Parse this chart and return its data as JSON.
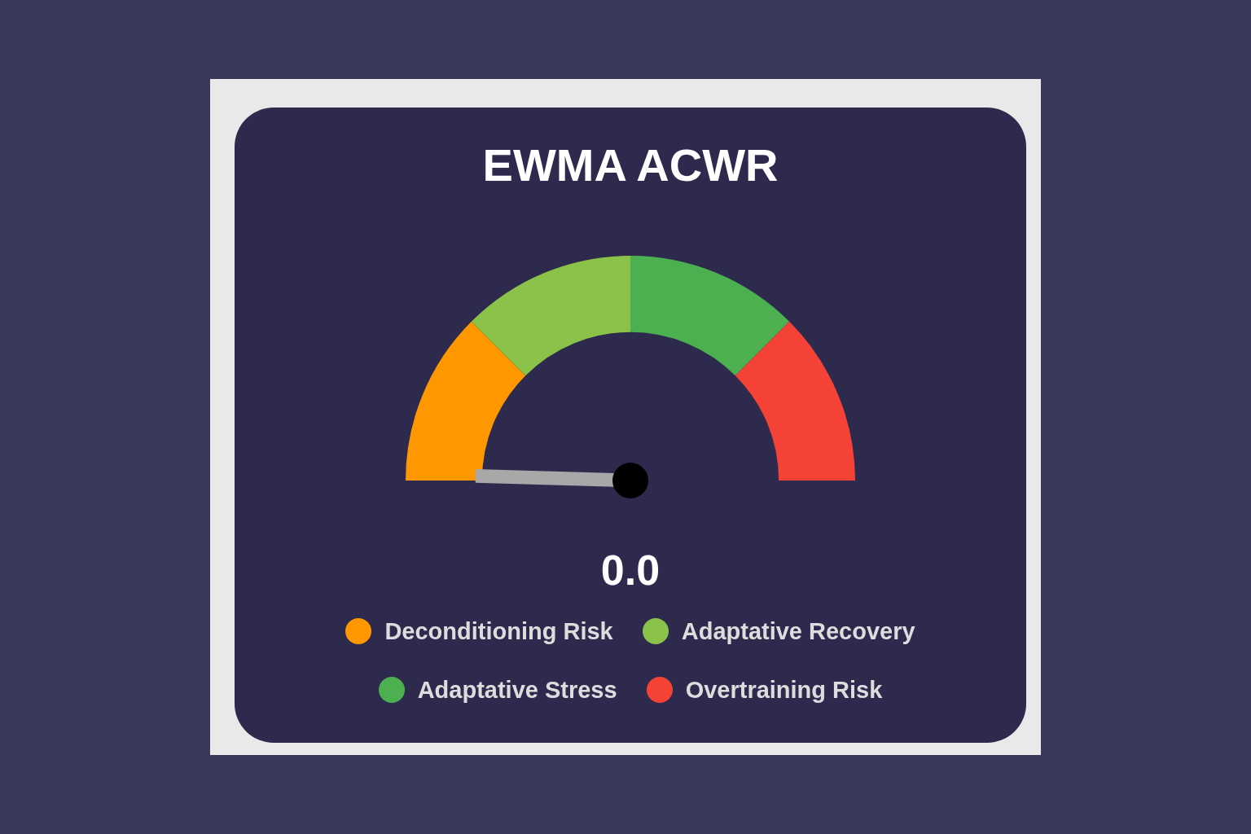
{
  "chart_data": {
    "type": "donut",
    "title": "EWMA ACWR",
    "categories": [
      "Deconditioning Risk",
      "Adaptative Recovery",
      "Adaptative Stress",
      "Overtraining Risk"
    ],
    "values": [
      25,
      25,
      25,
      25
    ],
    "colors": [
      "#ff9800",
      "#8bc34a",
      "#4caf50",
      "#f44336"
    ],
    "needle": "Deconditioning Risk",
    "annotations": [
      "0.0"
    ],
    "legend": "bottom"
  }
}
